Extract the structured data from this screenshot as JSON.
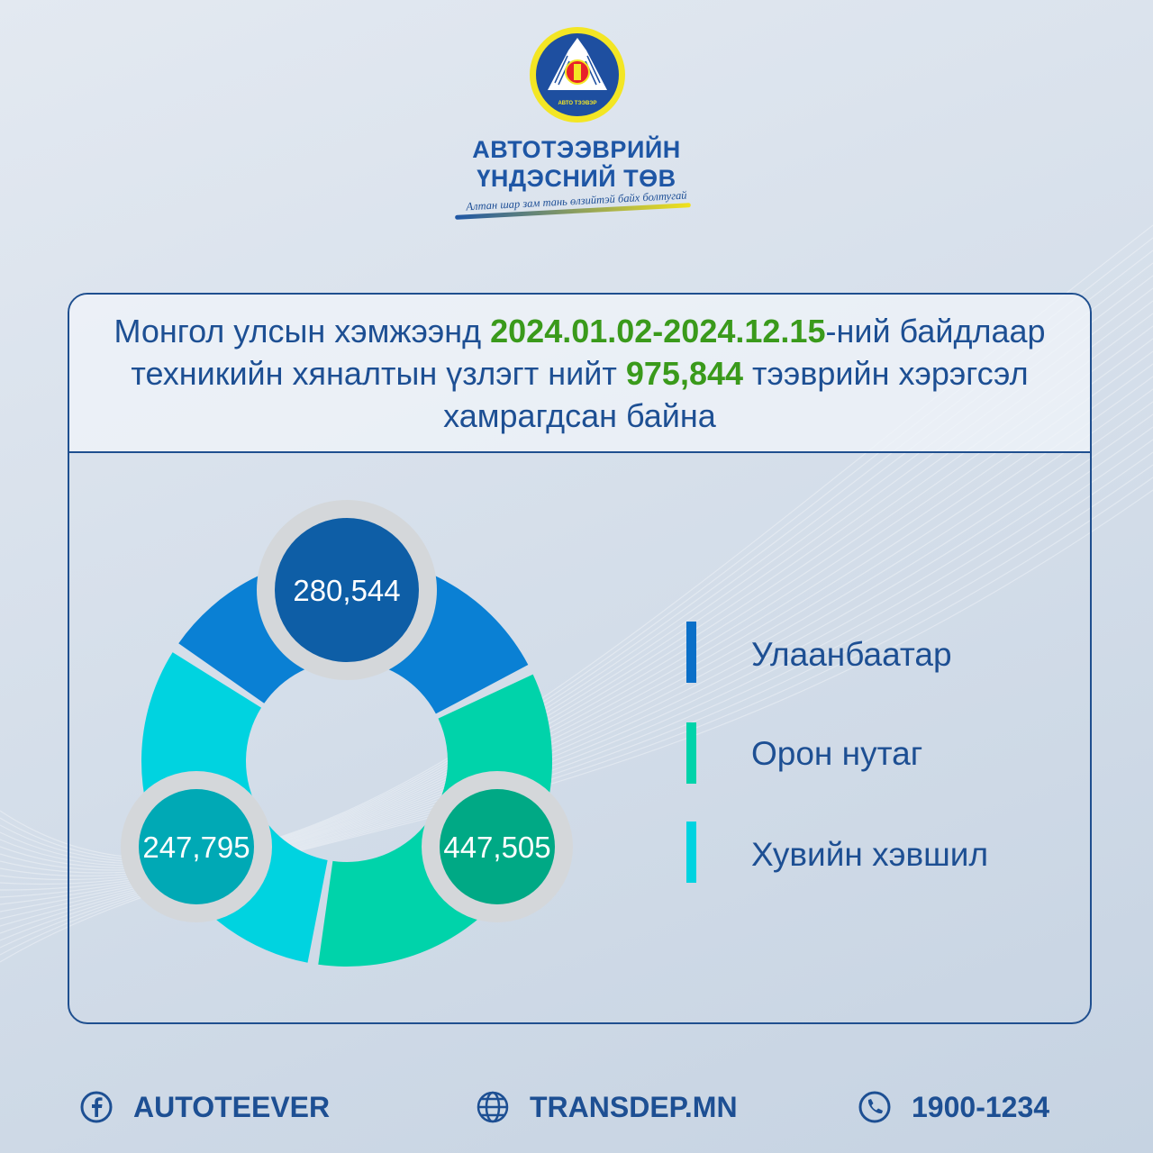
{
  "logo": {
    "ring_text": "АВТО ТЭЭВЭР"
  },
  "org": {
    "line1": "АВТОТЭЭВРИЙН",
    "line2": "ҮНДЭСНИЙ ТӨВ",
    "slogan": "Алтан шар зам тань өлзийтэй байх болтугай"
  },
  "headline": {
    "part1": "Монгол улсын хэмжээнд ",
    "period": "2024.01.02-2024.12.15",
    "part2": "-ний байдлаар техникийн хяналтын үзлэгт нийт ",
    "total": "975,844",
    "part3": " тээврийн хэрэгсэл хамрагдсан байна"
  },
  "chart_data": {
    "type": "pie",
    "title": "",
    "total": 975844,
    "categories": [
      "Улаанбаатар",
      "Орон нутаг",
      "Хувийн хэвшил"
    ],
    "values": [
      280544,
      447505,
      247795
    ],
    "value_labels": [
      "280,544",
      "447,505",
      "247,795"
    ],
    "colors": [
      "#0a80d4",
      "#00d3aa",
      "#00d3e0"
    ],
    "badge_colors": [
      "#0e5ea6",
      "#00a985",
      "#00a9b5"
    ],
    "legend_position": "right"
  },
  "footer": {
    "facebook": "AUTOTEEVER",
    "website": "TRANSDEP.MN",
    "phone": "1900-1234"
  },
  "icons": {
    "facebook": "facebook-icon",
    "website": "globe-icon",
    "phone": "phone-icon"
  }
}
